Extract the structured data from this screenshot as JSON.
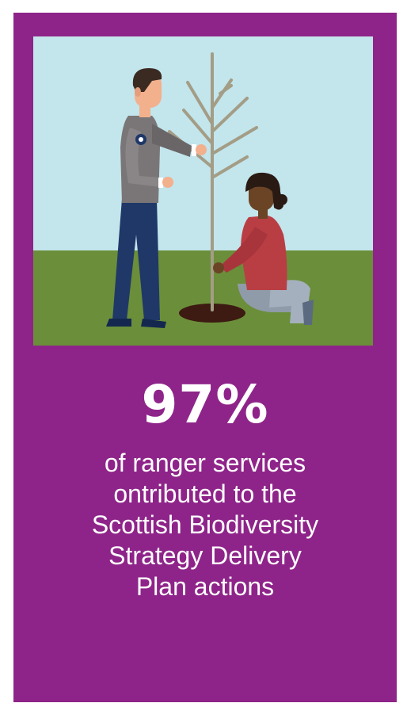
{
  "colors": {
    "panel": "#8e2489",
    "sky": "#c3e5ec",
    "grass": "#6b8e3a",
    "soil": "#3d1a12",
    "text": "#ffffff"
  },
  "illustration": {
    "icons": [
      "ranger-figure",
      "volunteer-figure",
      "sapling-tree"
    ]
  },
  "stat": {
    "value": "97%",
    "lines": [
      "of ranger services",
      "ontributed to the",
      "Scottish Biodiversity",
      "Strategy Delivery",
      "Plan actions"
    ]
  }
}
